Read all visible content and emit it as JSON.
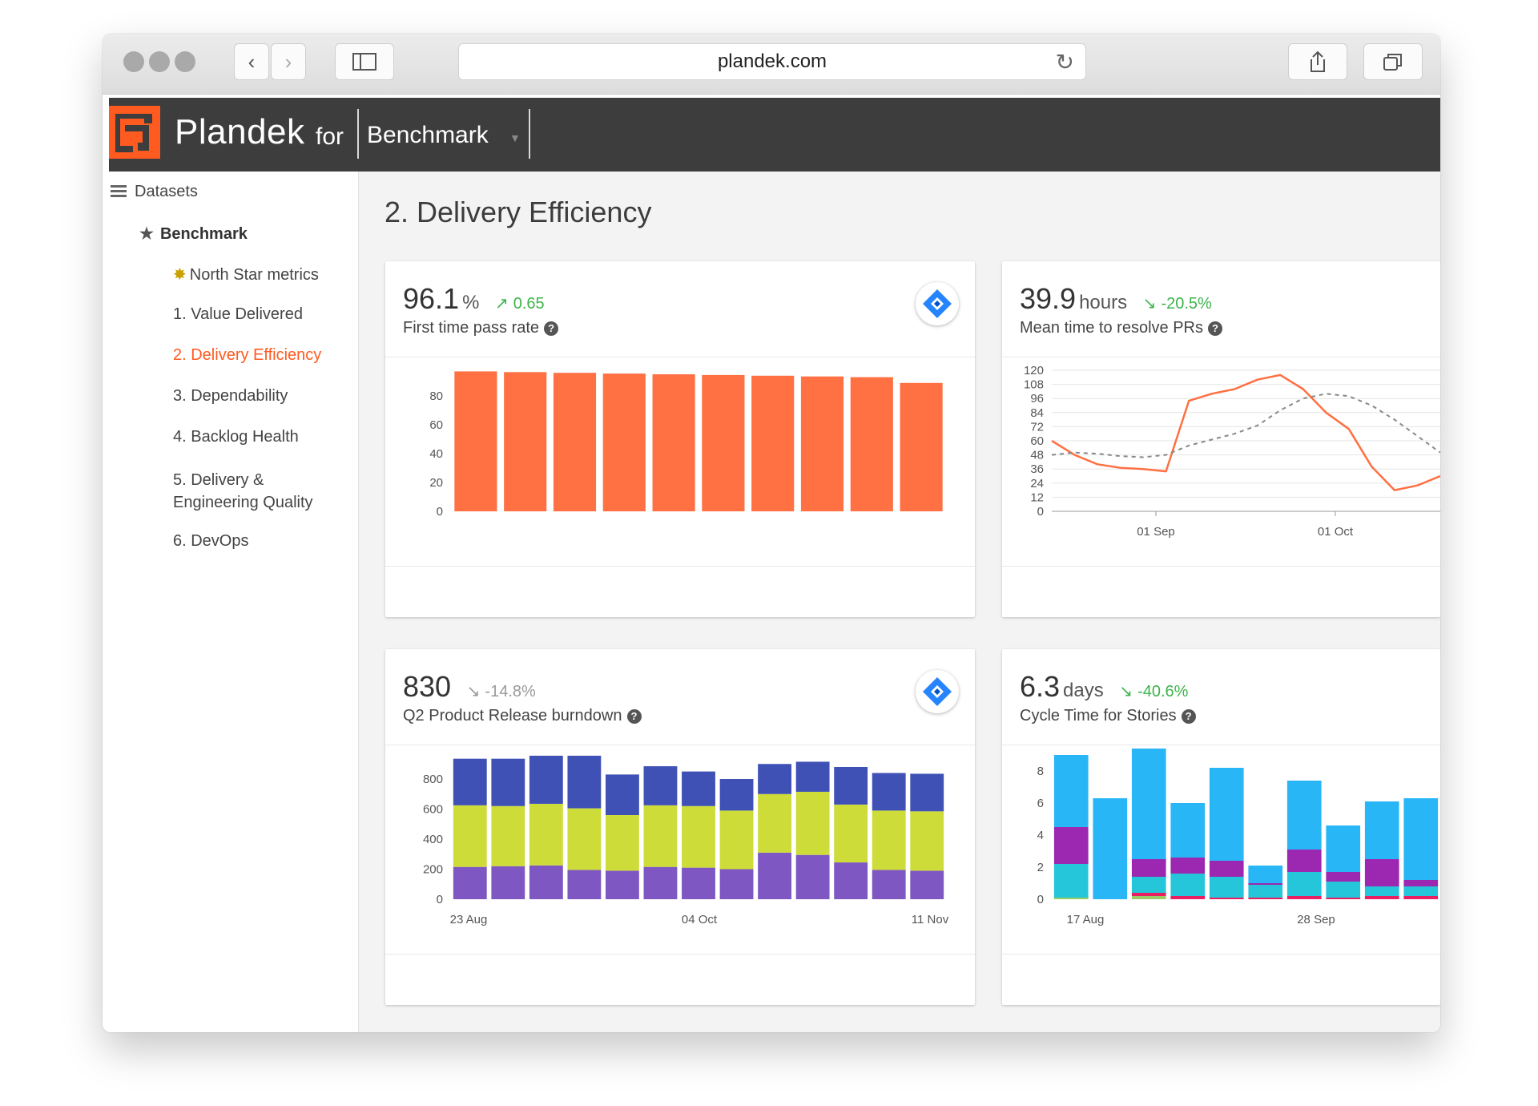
{
  "browser": {
    "url": "plandek.com"
  },
  "header": {
    "brand": "Plandek",
    "brand_for": "for",
    "workspace": "Benchmark"
  },
  "sidebar": {
    "datasets_label": "Datasets",
    "workspace_label": "Benchmark",
    "items": [
      {
        "label": "North Star metrics",
        "icon": "burst-icon"
      },
      {
        "label": "1. Value Delivered"
      },
      {
        "label": "2. Delivery Efficiency",
        "active": true
      },
      {
        "label": "3. Dependability"
      },
      {
        "label": "4. Backlog Health"
      },
      {
        "label": "5. Delivery &",
        "label2": "Engineering Quality"
      },
      {
        "label": "6. DevOps"
      }
    ]
  },
  "page": {
    "title": "2. Delivery Efficiency"
  },
  "colors": {
    "accent": "#ff5a1f",
    "bar": "#ff7043",
    "line": "#ff7043",
    "positive": "#3cb44b"
  },
  "cards": [
    {
      "value": "96.1",
      "unit": "%",
      "trend": "0.65",
      "trend_dir": "up",
      "title": "First time pass rate",
      "chart_data": {
        "type": "bar",
        "values": [
          97,
          96.5,
          96,
          95.5,
          95,
          94.5,
          94,
          93.5,
          93,
          89
        ],
        "y_ticks": [
          "0",
          "20",
          "40",
          "60",
          "80"
        ],
        "ylim": [
          0,
          100
        ]
      }
    },
    {
      "value": "39.9",
      "unit": "hours",
      "trend": "-20.5%",
      "trend_dir": "down",
      "title": "Mean time to resolve PRs",
      "chart_data": {
        "type": "line",
        "y_ticks": [
          "0",
          "12",
          "24",
          "36",
          "48",
          "60",
          "72",
          "84",
          "96",
          "108",
          "120"
        ],
        "x_ticks": [
          "01 Sep",
          "01 Oct"
        ],
        "ylim": [
          0,
          120
        ],
        "series": [
          {
            "style": "solid",
            "values": [
              60,
              48,
              40,
              37,
              36,
              34,
              94,
              100,
              104,
              112,
              116,
              104,
              84,
              70,
              38,
              18,
              22,
              30
            ]
          },
          {
            "style": "dashed",
            "values": [
              48,
              50,
              49,
              47,
              46,
              48,
              56,
              61,
              66,
              73,
              86,
              96,
              100,
              98,
              90,
              78,
              64,
              50
            ]
          }
        ]
      }
    },
    {
      "value": "830",
      "unit": "",
      "trend": "-14.8%",
      "trend_dir": "down",
      "title": "Q2 Product Release burndown",
      "chart_data": {
        "type": "bar",
        "stacked": true,
        "x_ticks": [
          "23 Aug",
          "04 Oct",
          "11 Nov"
        ],
        "y_ticks": [
          "0",
          "200",
          "400",
          "600",
          "800"
        ],
        "ylim": [
          0,
          960
        ],
        "series": [
          {
            "color": "#7e57c2",
            "values": [
              215,
              220,
              225,
              195,
              190,
              215,
              210,
              200,
              310,
              295,
              245,
              195,
              190
            ]
          },
          {
            "color": "#cddc39",
            "values": [
              410,
              400,
              410,
              410,
              370,
              410,
              410,
              390,
              390,
              420,
              385,
              395,
              395
            ]
          },
          {
            "color": "#3f51b5",
            "values": [
              310,
              315,
              320,
              350,
              270,
              260,
              230,
              210,
              200,
              200,
              250,
              250,
              250
            ]
          }
        ]
      }
    },
    {
      "value": "6.3",
      "unit": "days",
      "trend": "-40.6%",
      "trend_dir": "down",
      "title": "Cycle Time for Stories",
      "chart_data": {
        "type": "bar",
        "stacked": true,
        "x_ticks": [
          "17 Aug",
          "28 Sep"
        ],
        "y_ticks": [
          "0",
          "2",
          "4",
          "6",
          "8"
        ],
        "ylim": [
          0,
          9
        ],
        "series": [
          {
            "color": "#9ccc65",
            "values": [
              0.1,
              0,
              0.2,
              0,
              0,
              0,
              0,
              0,
              0,
              0
            ]
          },
          {
            "color": "#e91e63",
            "values": [
              0,
              0,
              0.2,
              0.2,
              0.1,
              0.1,
              0.2,
              0.1,
              0.2,
              0.2
            ]
          },
          {
            "color": "#26c6da",
            "values": [
              2.1,
              0,
              1.0,
              1.4,
              1.3,
              0.8,
              1.5,
              1.0,
              0.6,
              0.6
            ]
          },
          {
            "color": "#9c27b0",
            "values": [
              2.3,
              0,
              1.1,
              1.0,
              1.0,
              0.1,
              1.4,
              0.6,
              1.7,
              0.4
            ]
          },
          {
            "color": "#29b6f6",
            "values": [
              4.5,
              6.3,
              6.9,
              3.4,
              5.8,
              1.1,
              4.3,
              2.9,
              3.6,
              5.1
            ]
          }
        ]
      }
    }
  ]
}
